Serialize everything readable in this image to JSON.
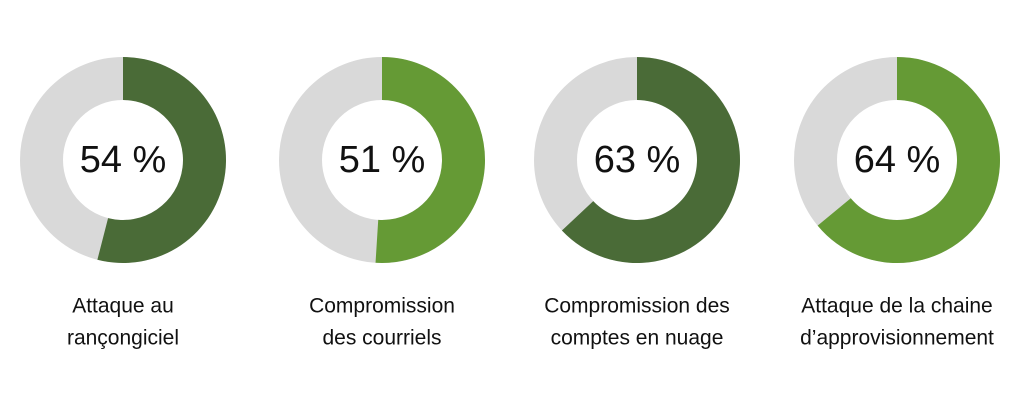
{
  "chart_data": [
    {
      "type": "donut",
      "values": [
        54
      ],
      "value_labels": [
        "54 %"
      ],
      "color": "#4a6b37",
      "ylim": [
        0,
        100
      ],
      "label": [
        "Attaque au",
        "rançongiciel"
      ]
    },
    {
      "type": "donut",
      "values": [
        51
      ],
      "value_labels": [
        "51 %"
      ],
      "color": "#659a35",
      "ylim": [
        0,
        100
      ],
      "label": [
        "Compromission",
        "des courriels"
      ]
    },
    {
      "type": "donut",
      "values": [
        63
      ],
      "value_labels": [
        "63 %"
      ],
      "color": "#4a6b37",
      "ylim": [
        0,
        100
      ],
      "label": [
        "Compromission des",
        "comptes en nuage"
      ]
    },
    {
      "type": "donut",
      "values": [
        64
      ],
      "value_labels": [
        "64 %"
      ],
      "color": "#659a35",
      "ylim": [
        0,
        100
      ],
      "label": [
        "Attaque de la chaine",
        "d’approvisionnement"
      ]
    }
  ]
}
